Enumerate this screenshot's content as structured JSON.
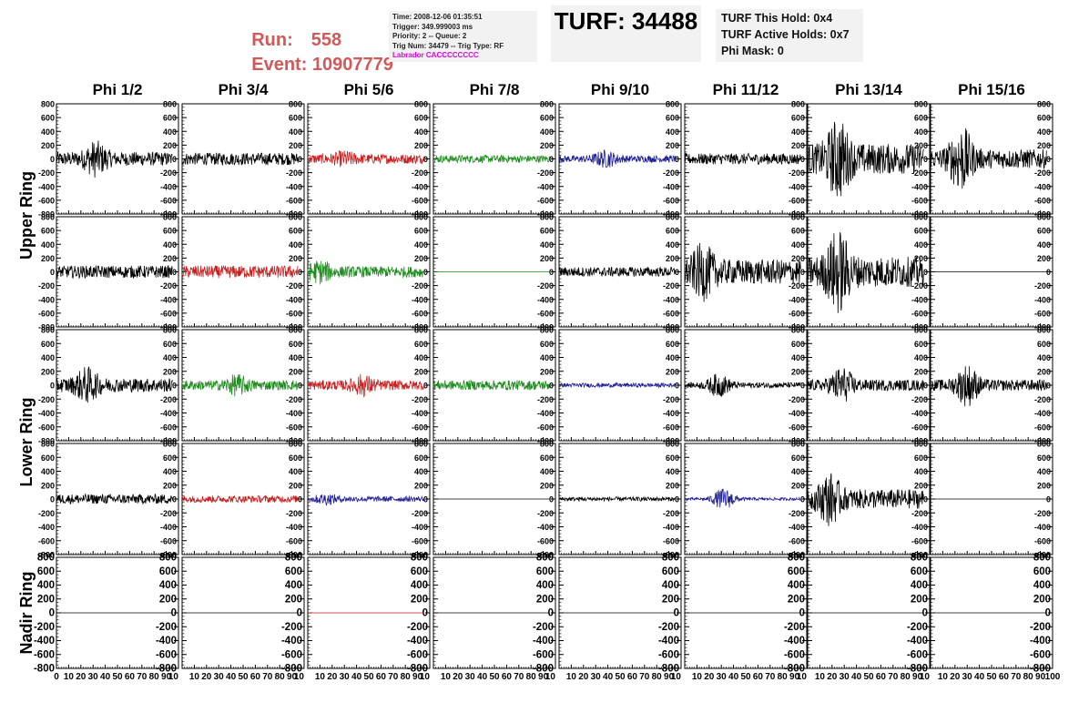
{
  "header": {
    "run_label": "Run:",
    "run_value": "558",
    "event_label": "Event:",
    "event_value": "10907779",
    "time_line": "Time: 2008-12-06 01:35:51",
    "trigger_line": "Trigger: 349.999003 ms",
    "priority_line": "Priority: 2 -- Queue: 2",
    "trignum_line": "Trig Num: 34479 -- Trig Type: RF",
    "flags_line": "Labrador CACCCCCCCC",
    "turf_title": "TURF: 34488",
    "turf_hold": "TURF This Hold: 0x4",
    "turf_active": "TURF Active Holds: 0x7",
    "phi_mask": "Phi Mask: 0"
  },
  "colors": {
    "run_text": "#d05a5a",
    "flags_text": "#e000e0",
    "trace_black": "#000000",
    "trace_red": "#c81e1e",
    "trace_green": "#1e8c1e",
    "trace_blue": "#1e1e96"
  },
  "chart_data": {
    "type": "line",
    "columns": [
      "Phi 1/2",
      "Phi 3/4",
      "Phi 5/6",
      "Phi 7/8",
      "Phi 9/10",
      "Phi 11/12",
      "Phi 13/14",
      "Phi 15/16"
    ],
    "rows": [
      "Upper Ring",
      "Lower Ring",
      "Nadir Ring"
    ],
    "ylim": [
      -800,
      800
    ],
    "yticks": [
      -800,
      -600,
      -400,
      -200,
      0,
      200,
      400,
      600,
      800
    ],
    "xlim": [
      0,
      100
    ],
    "xticks": [
      0,
      10,
      20,
      30,
      40,
      50,
      60,
      70,
      80,
      90,
      100
    ],
    "panels": [
      [
        {
          "color": "black",
          "amp": 100,
          "burst_center": 32,
          "burst_amp": 180,
          "end": 95
        },
        {
          "color": "black",
          "amp": 90,
          "burst_center": 0,
          "burst_amp": 0,
          "end": 95
        },
        {
          "color": "red",
          "amp": 70,
          "burst_center": 30,
          "burst_amp": 60,
          "end": 95
        },
        {
          "color": "green",
          "amp": 55,
          "burst_center": 0,
          "burst_amp": 0,
          "end": 95
        },
        {
          "color": "blue",
          "amp": 50,
          "burst_center": 38,
          "burst_amp": 90,
          "end": 95
        },
        {
          "color": "black",
          "amp": 80,
          "burst_center": 0,
          "burst_amp": 0,
          "end": 95
        },
        {
          "color": "black",
          "amp": 220,
          "burst_center": 25,
          "burst_amp": 400,
          "end": 95
        },
        {
          "color": "black",
          "amp": 140,
          "burst_center": 25,
          "burst_amp": 380,
          "end": 95
        }
      ],
      [
        {
          "color": "black",
          "amp": 90,
          "burst_center": 0,
          "burst_amp": 0,
          "end": 95
        },
        {
          "color": "red",
          "amp": 90,
          "burst_center": 0,
          "burst_amp": 0,
          "end": 95
        },
        {
          "color": "green",
          "amp": 80,
          "burst_center": 10,
          "burst_amp": 110,
          "end": 95
        },
        {
          "color": "green",
          "amp": 0,
          "burst_center": 0,
          "burst_amp": 0,
          "end": 95
        },
        {
          "color": "black",
          "amp": 70,
          "burst_center": 0,
          "burst_amp": 0,
          "end": 95
        },
        {
          "color": "black",
          "amp": 180,
          "burst_center": 15,
          "burst_amp": 260,
          "end": 95
        },
        {
          "color": "black",
          "amp": 220,
          "burst_center": 25,
          "burst_amp": 430,
          "end": 95
        },
        {
          "color": "black",
          "amp": 0,
          "burst_center": 0,
          "burst_amp": 0,
          "end": 100
        }
      ],
      [
        {
          "color": "black",
          "amp": 100,
          "burst_center": 25,
          "burst_amp": 180,
          "end": 95
        },
        {
          "color": "green",
          "amp": 70,
          "burst_center": 45,
          "burst_amp": 100,
          "end": 95
        },
        {
          "color": "red",
          "amp": 70,
          "burst_center": 45,
          "burst_amp": 100,
          "end": 95
        },
        {
          "color": "green",
          "amp": 70,
          "burst_center": 0,
          "burst_amp": 0,
          "end": 95
        },
        {
          "color": "blue",
          "amp": 30,
          "burst_center": 0,
          "burst_amp": 0,
          "end": 95
        },
        {
          "color": "black",
          "amp": 40,
          "burst_center": 28,
          "burst_amp": 140,
          "end": 95
        },
        {
          "color": "black",
          "amp": 80,
          "burst_center": 28,
          "burst_amp": 200,
          "end": 95
        },
        {
          "color": "black",
          "amp": 80,
          "burst_center": 30,
          "burst_amp": 240,
          "end": 95
        }
      ],
      [
        {
          "color": "black",
          "amp": 70,
          "burst_center": 0,
          "burst_amp": 0,
          "end": 95
        },
        {
          "color": "red",
          "amp": 50,
          "burst_center": 0,
          "burst_amp": 0,
          "end": 95
        },
        {
          "color": "blue",
          "amp": 40,
          "burst_center": 15,
          "burst_amp": 50,
          "end": 95
        },
        {
          "color": "black",
          "amp": 0,
          "burst_center": 0,
          "burst_amp": 0,
          "end": 95
        },
        {
          "color": "black",
          "amp": 30,
          "burst_center": 0,
          "burst_amp": 0,
          "end": 95
        },
        {
          "color": "blue",
          "amp": 20,
          "burst_center": 32,
          "burst_amp": 140,
          "end": 95
        },
        {
          "color": "black",
          "amp": 140,
          "burst_center": 18,
          "burst_amp": 260,
          "end": 95
        },
        {
          "color": "black",
          "amp": 0,
          "burst_center": 0,
          "burst_amp": 0,
          "end": 100
        }
      ],
      [
        {
          "color": "black",
          "amp": 0,
          "burst_center": 0,
          "burst_amp": 0,
          "end": 95
        },
        {
          "color": "black",
          "amp": 0,
          "burst_center": 0,
          "burst_amp": 0,
          "end": 95
        },
        {
          "color": "red",
          "amp": 0,
          "burst_center": 0,
          "burst_amp": 0,
          "end": 95
        },
        {
          "color": "black",
          "amp": 0,
          "burst_center": 0,
          "burst_amp": 0,
          "end": 95
        },
        {
          "color": "black",
          "amp": 0,
          "burst_center": 0,
          "burst_amp": 0,
          "end": 95
        },
        {
          "color": "black",
          "amp": 0,
          "burst_center": 0,
          "burst_amp": 0,
          "end": 95
        },
        {
          "color": "black",
          "amp": 0,
          "burst_center": 0,
          "burst_amp": 0,
          "end": 95
        },
        {
          "color": "black",
          "amp": 0,
          "burst_center": 0,
          "burst_amp": 0,
          "end": 95
        }
      ]
    ]
  }
}
